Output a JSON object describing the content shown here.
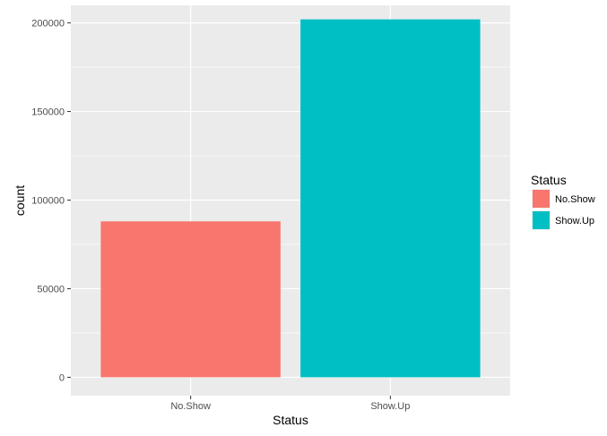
{
  "chart_data": {
    "type": "bar",
    "title": "",
    "xlabel": "Status",
    "ylabel": "count",
    "categories": [
      "No.Show",
      "Show.Up"
    ],
    "values": [
      88000,
      202000
    ],
    "colors": [
      "#F8766D",
      "#00BFC4"
    ],
    "ylim": [
      -10400,
      209900
    ],
    "yticks": [
      0,
      50000,
      100000,
      150000,
      200000
    ],
    "ytick_labels": [
      "0",
      "50000",
      "100000",
      "150000",
      "200000"
    ],
    "grid": true,
    "panel_background": "#EBEBEB",
    "grid_color": "#FFFFFF",
    "legend": {
      "title": "Status",
      "placement": "right",
      "entries": [
        "No.Show",
        "Show.Up"
      ]
    }
  }
}
